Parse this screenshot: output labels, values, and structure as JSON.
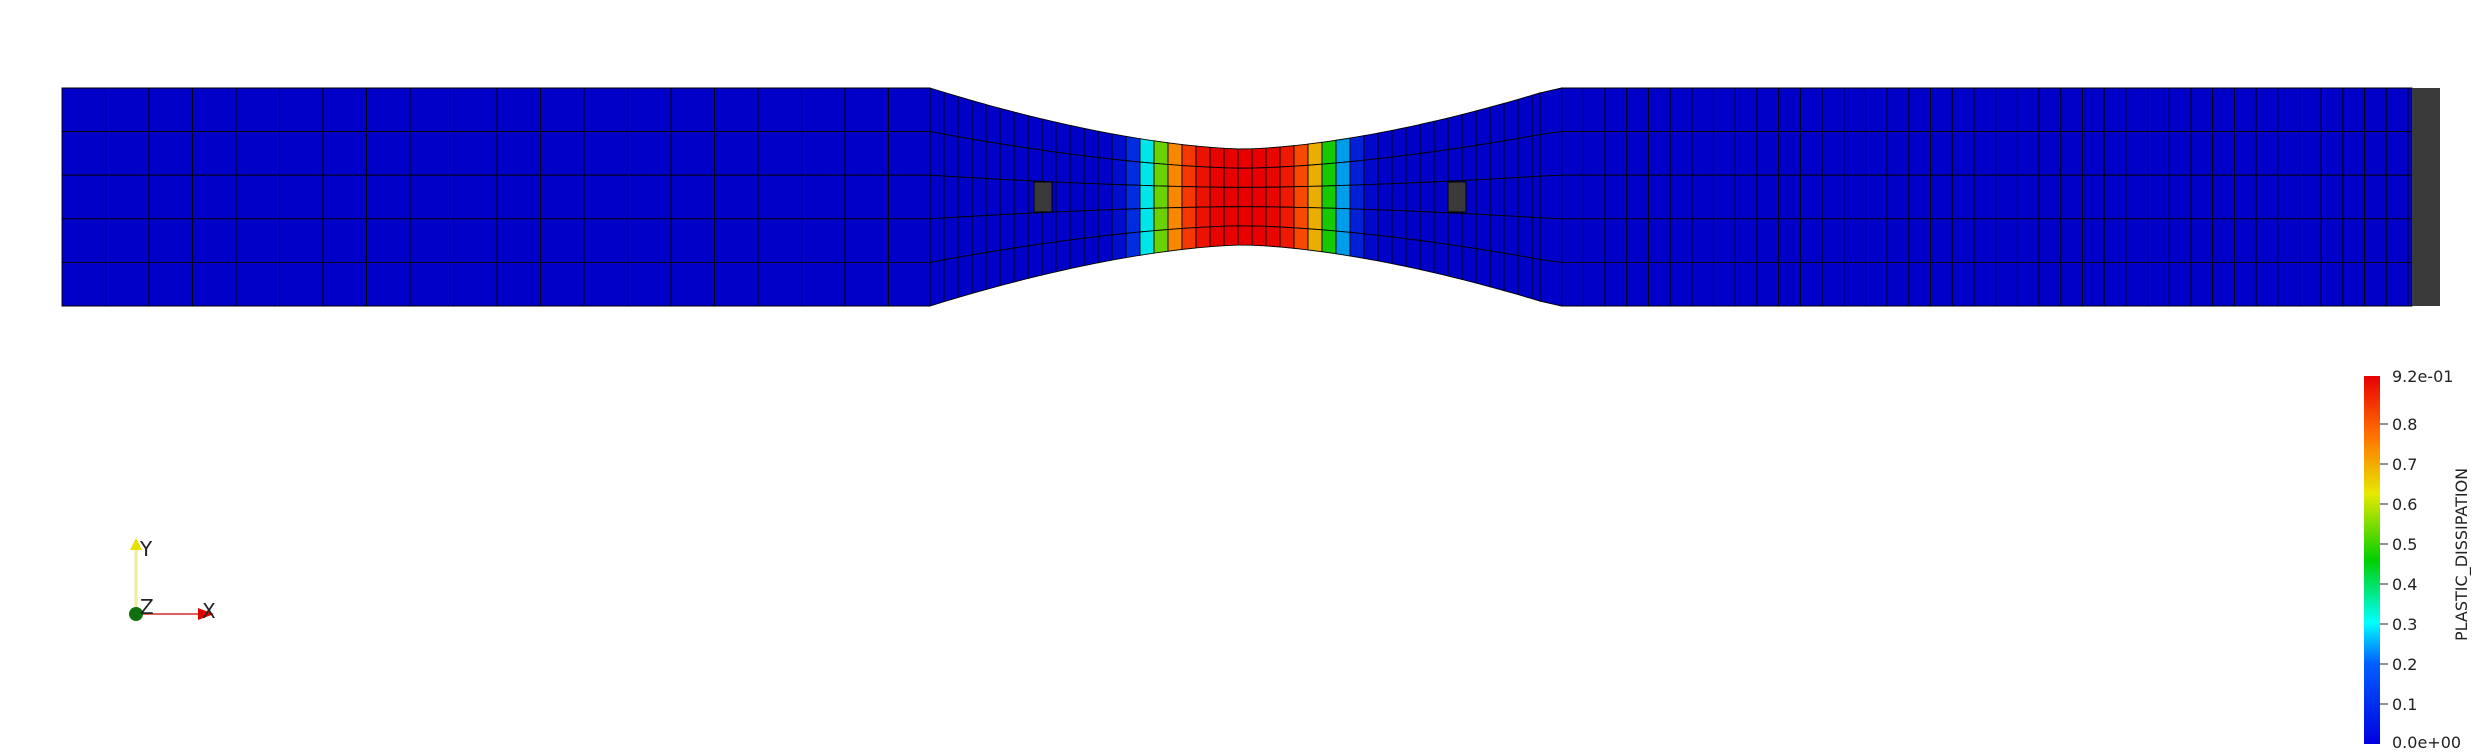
{
  "scalar_bar": {
    "title": "PLASTIC_DISSIPATION",
    "max_label": "9.2e-01",
    "min_label": "0.0e+00",
    "min_value": 0.0,
    "max_value": 0.92,
    "ticks": [
      "0.1",
      "0.2",
      "0.3",
      "0.4",
      "0.5",
      "0.6",
      "0.7",
      "0.8"
    ],
    "tick_values": [
      0.1,
      0.2,
      0.3,
      0.4,
      0.5,
      0.6,
      0.7,
      0.8
    ]
  },
  "orientation_axes": {
    "x": "X",
    "y": "Y",
    "z": "Z"
  },
  "colors": {
    "background": "#ffffff",
    "mesh_edge": "#000000",
    "low": "#0000c8",
    "high": "#e80000",
    "fixture": "#3a3a3a",
    "axis_x": "#e00000",
    "axis_y": "#e8e000",
    "axis_z": "#107010"
  }
}
